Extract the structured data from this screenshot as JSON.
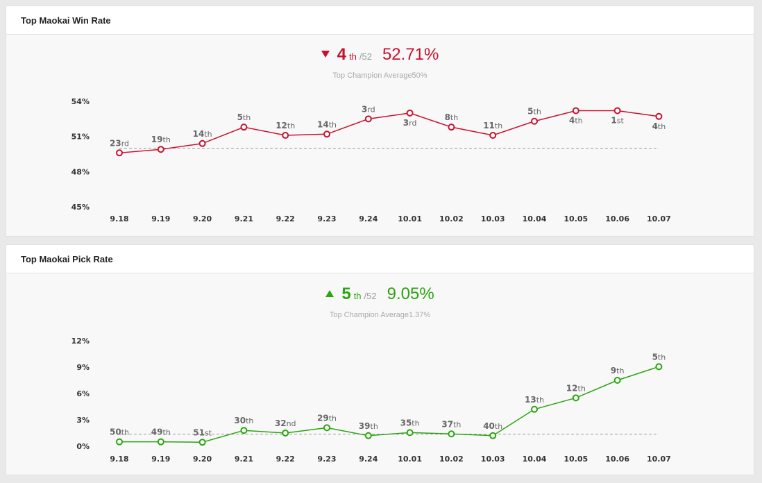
{
  "panels": [
    {
      "title": "Top Maokai Win Rate",
      "trend": "down",
      "rank": "4",
      "rank_suffix": "th",
      "rank_total": "/52",
      "rate": "52.71%",
      "average_label": "Top Champion Average50%",
      "color": "#c8102e"
    },
    {
      "title": "Top Maokai Pick Rate",
      "trend": "up",
      "rank": "5",
      "rank_suffix": "th",
      "rank_total": "/52",
      "rate": "9.05%",
      "average_label": "Top Champion Average1.37%",
      "color": "#2aa40f"
    }
  ],
  "chart_data": [
    {
      "type": "line",
      "x": [
        "9.18",
        "9.19",
        "9.20",
        "9.21",
        "9.22",
        "9.23",
        "9.24",
        "10.01",
        "10.02",
        "10.03",
        "10.04",
        "10.05",
        "10.06",
        "10.07"
      ],
      "values": [
        49.6,
        49.9,
        50.4,
        51.8,
        51.1,
        51.2,
        52.5,
        53.0,
        51.8,
        51.1,
        52.3,
        53.2,
        53.2,
        52.71
      ],
      "rank_labels": [
        {
          "num": "23",
          "suffix": "rd"
        },
        {
          "num": "19",
          "suffix": "th"
        },
        {
          "num": "14",
          "suffix": "th"
        },
        {
          "num": "5",
          "suffix": "th"
        },
        {
          "num": "12",
          "suffix": "th"
        },
        {
          "num": "14",
          "suffix": "th"
        },
        {
          "num": "3",
          "suffix": "rd"
        },
        {
          "num": "3",
          "suffix": "rd"
        },
        {
          "num": "8",
          "suffix": "th"
        },
        {
          "num": "11",
          "suffix": "th"
        },
        {
          "num": "5",
          "suffix": "th"
        },
        {
          "num": "4",
          "suffix": "th"
        },
        {
          "num": "1",
          "suffix": "st"
        },
        {
          "num": "4",
          "suffix": "th"
        }
      ],
      "label_below": [
        false,
        false,
        false,
        false,
        false,
        false,
        false,
        true,
        false,
        false,
        false,
        true,
        true,
        true
      ],
      "average": 50,
      "yticks": [
        "54%",
        "51%",
        "48%",
        "45%"
      ],
      "ylim": [
        45,
        54
      ],
      "ytick_values": [
        54,
        51,
        48,
        45
      ],
      "color": "#c8102e"
    },
    {
      "type": "line",
      "x": [
        "9.18",
        "9.19",
        "9.20",
        "9.21",
        "9.22",
        "9.23",
        "9.24",
        "10.01",
        "10.02",
        "10.03",
        "10.04",
        "10.05",
        "10.06",
        "10.07"
      ],
      "values": [
        0.5,
        0.5,
        0.45,
        1.8,
        1.5,
        2.1,
        1.2,
        1.55,
        1.4,
        1.2,
        4.2,
        5.5,
        7.5,
        9.05
      ],
      "rank_labels": [
        {
          "num": "50",
          "suffix": "th"
        },
        {
          "num": "49",
          "suffix": "th"
        },
        {
          "num": "51",
          "suffix": "st"
        },
        {
          "num": "30",
          "suffix": "th"
        },
        {
          "num": "32",
          "suffix": "nd"
        },
        {
          "num": "29",
          "suffix": "th"
        },
        {
          "num": "39",
          "suffix": "th"
        },
        {
          "num": "35",
          "suffix": "th"
        },
        {
          "num": "37",
          "suffix": "th"
        },
        {
          "num": "40",
          "suffix": "th"
        },
        {
          "num": "13",
          "suffix": "th"
        },
        {
          "num": "12",
          "suffix": "th"
        },
        {
          "num": "9",
          "suffix": "th"
        },
        {
          "num": "5",
          "suffix": "th"
        }
      ],
      "label_below": [
        false,
        false,
        false,
        false,
        false,
        false,
        false,
        false,
        false,
        false,
        false,
        false,
        false,
        false
      ],
      "average": 1.37,
      "yticks": [
        "12%",
        "9%",
        "6%",
        "3%",
        "0%"
      ],
      "ylim": [
        0,
        12
      ],
      "ytick_values": [
        12,
        9,
        6,
        3,
        0
      ],
      "color": "#2aa40f"
    }
  ]
}
